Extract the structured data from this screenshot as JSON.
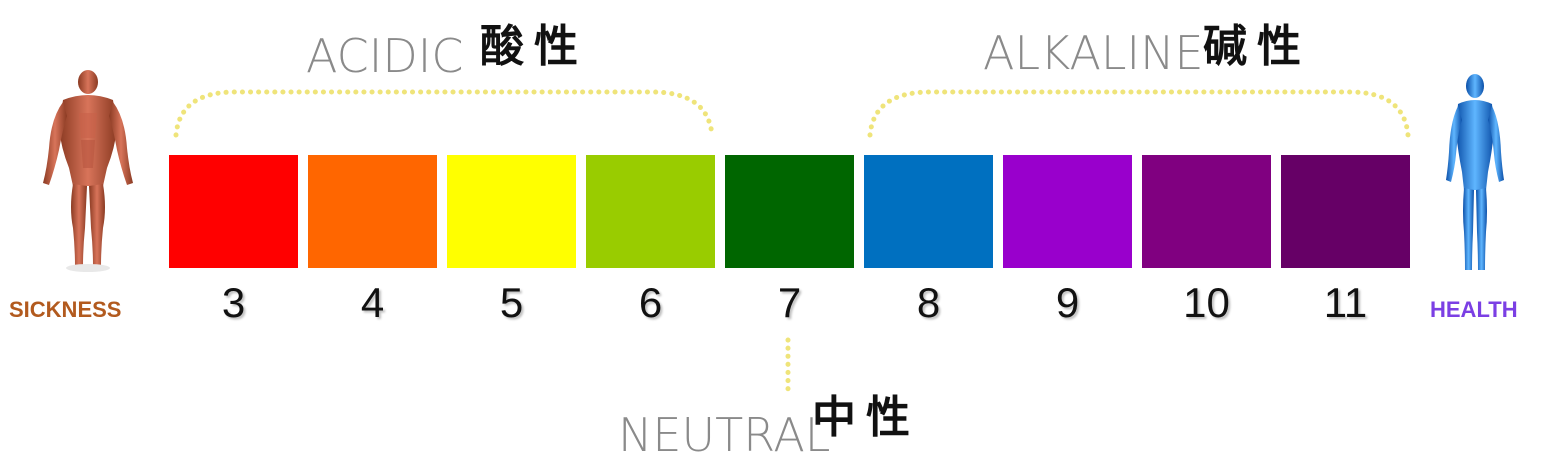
{
  "acidic": {
    "label": "ACIDIC",
    "cn": "酸性"
  },
  "alkaline": {
    "label": "ALKALINE",
    "cn": "碱性"
  },
  "neutral": {
    "label": "NEUTRAL",
    "cn": "中性"
  },
  "sickness": {
    "label": "SICKNESS",
    "color": "#b25a1e"
  },
  "health": {
    "label": "HEALTH",
    "color": "#7b3fe4"
  },
  "bracket_color": "#efe47a",
  "scale": [
    {
      "value": "3",
      "color": "#ff0000"
    },
    {
      "value": "4",
      "color": "#ff6600"
    },
    {
      "value": "5",
      "color": "#ffff00"
    },
    {
      "value": "6",
      "color": "#99cc00"
    },
    {
      "value": "7",
      "color": "#006600"
    },
    {
      "value": "8",
      "color": "#0070c0"
    },
    {
      "value": "9",
      "color": "#9900cc"
    },
    {
      "value": "10",
      "color": "#800080"
    },
    {
      "value": "11",
      "color": "#660066"
    }
  ]
}
